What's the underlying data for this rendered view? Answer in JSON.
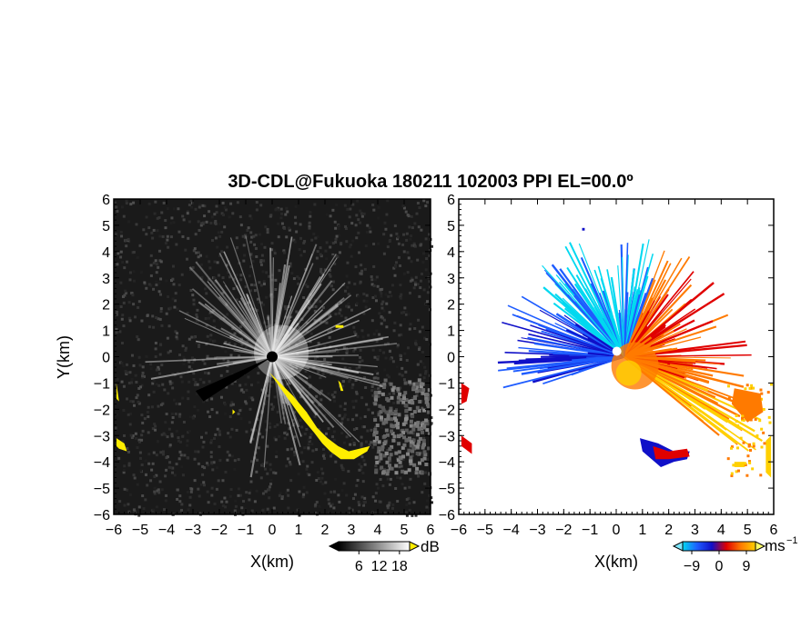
{
  "chart_data": {
    "title": "3D-CDL@Fukuoka 180211 102003 PPI EL=00.0º",
    "panels": [
      {
        "type": "heatmap",
        "quantity": "SNR",
        "xlabel": "X(km)",
        "ylabel": "Y(km)",
        "xlim": [
          -6,
          6
        ],
        "ylim": [
          -6,
          6
        ],
        "xticks": [
          -6,
          -5,
          -4,
          -3,
          -2,
          -1,
          0,
          1,
          2,
          3,
          4,
          5,
          6
        ],
        "yticks": [
          -6,
          -5,
          -4,
          -3,
          -2,
          -1,
          0,
          1,
          2,
          3,
          4,
          5,
          6
        ],
        "colorbar": {
          "unit": "dB",
          "ticks": [
            6,
            12,
            18
          ],
          "scale": "black-to-white",
          "flag_color": "#ffee00"
        },
        "background_color": "#1a1a1a"
      },
      {
        "type": "heatmap",
        "quantity": "Doppler velocity",
        "xlabel": "X(km)",
        "ylim": [
          -6,
          6
        ],
        "xlim": [
          -6,
          6
        ],
        "xticks": [
          -6,
          -5,
          -4,
          -3,
          -2,
          -1,
          0,
          1,
          2,
          3,
          4,
          5,
          6
        ],
        "yticks": [
          -6,
          -5,
          -4,
          -3,
          -2,
          -1,
          0,
          1,
          2,
          3,
          4,
          5,
          6
        ],
        "colorbar": {
          "unit": "ms",
          "unit_exp": "−1",
          "ticks": [
            -9,
            0,
            9
          ],
          "colors": [
            "#00d8f0",
            "#1e5cff",
            "#1010c8",
            "#e00000",
            "#ff7a00",
            "#ffd000"
          ]
        },
        "background_color": "#ffffff"
      }
    ]
  }
}
